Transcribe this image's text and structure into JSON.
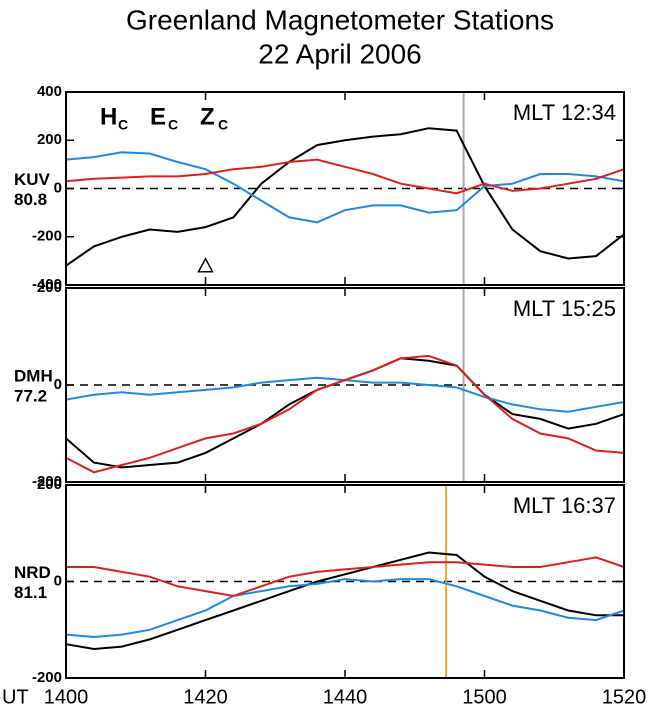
{
  "title": "Greenland Magnetometer Stations",
  "subtitle": "22 April 2006",
  "legend_subscript": "C",
  "chart_data": [
    {
      "type": "line",
      "station": "KUV",
      "latitude": "80.8",
      "annotation": "MLT 12:34",
      "legend": true,
      "x": [
        840,
        844,
        848,
        852,
        856,
        860,
        864,
        868,
        872,
        876,
        880,
        884,
        888,
        892,
        896,
        900,
        904,
        908,
        912,
        916,
        920
      ],
      "xlim": [
        840,
        920
      ],
      "ylim": [
        -400,
        400
      ],
      "yticks": [
        -400,
        -200,
        0,
        200,
        400
      ],
      "vline": {
        "x": 897,
        "color": "#aaaaaa"
      },
      "marker": {
        "x": 860,
        "y": -320,
        "symbol": "triangle"
      },
      "series": [
        {
          "name": "H",
          "color": "#000000",
          "values": [
            -320,
            -240,
            -200,
            -170,
            -180,
            -160,
            -120,
            20,
            110,
            180,
            200,
            215,
            225,
            250,
            240,
            10,
            -170,
            -260,
            -290,
            -280,
            -190
          ]
        },
        {
          "name": "E",
          "color": "#1e88e5",
          "values": [
            120,
            130,
            150,
            145,
            110,
            80,
            20,
            -50,
            -120,
            -140,
            -90,
            -70,
            -70,
            -100,
            -90,
            10,
            20,
            60,
            60,
            50,
            30
          ]
        },
        {
          "name": "Z",
          "color": "#e01e1e",
          "values": [
            30,
            40,
            45,
            50,
            50,
            60,
            80,
            90,
            110,
            120,
            90,
            60,
            20,
            0,
            -20,
            20,
            -10,
            0,
            20,
            40,
            80
          ]
        }
      ]
    },
    {
      "type": "line",
      "station": "DMH",
      "latitude": "77.2",
      "annotation": "MLT 15:25",
      "x": [
        840,
        844,
        848,
        852,
        856,
        860,
        864,
        868,
        872,
        876,
        880,
        884,
        888,
        892,
        896,
        900,
        904,
        908,
        912,
        916,
        920
      ],
      "xlim": [
        840,
        920
      ],
      "ylim": [
        -200,
        200
      ],
      "yticks": [
        -200,
        0,
        200
      ],
      "vline": {
        "x": 897,
        "color": "#aaaaaa"
      },
      "series": [
        {
          "color": "#000000",
          "values": [
            -110,
            -160,
            -170,
            -165,
            -160,
            -140,
            -110,
            -80,
            -40,
            -10,
            10,
            30,
            55,
            50,
            40,
            -20,
            -60,
            -70,
            -90,
            -80,
            -60
          ]
        },
        {
          "color": "#1e88e5",
          "values": [
            -30,
            -20,
            -15,
            -20,
            -15,
            -10,
            -5,
            5,
            10,
            15,
            10,
            5,
            5,
            0,
            -5,
            -25,
            -40,
            -50,
            -55,
            -45,
            -35
          ]
        },
        {
          "color": "#e01e1e",
          "values": [
            -150,
            -180,
            -165,
            -150,
            -130,
            -110,
            -100,
            -80,
            -50,
            -10,
            10,
            30,
            55,
            60,
            40,
            -20,
            -70,
            -100,
            -110,
            -135,
            -140
          ]
        }
      ]
    },
    {
      "type": "line",
      "station": "NRD",
      "latitude": "81.1",
      "annotation": "MLT 16:37",
      "xlabel": "UT",
      "x": [
        840,
        844,
        848,
        852,
        856,
        860,
        864,
        868,
        872,
        876,
        880,
        884,
        888,
        892,
        896,
        900,
        904,
        908,
        912,
        916,
        920
      ],
      "xlim": [
        840,
        920
      ],
      "ylim": [
        -200,
        200
      ],
      "yticks": [
        -200,
        0,
        200
      ],
      "xticks": [
        {
          "value": 840,
          "label": "1400"
        },
        {
          "value": 860,
          "label": "1420"
        },
        {
          "value": 880,
          "label": "1440"
        },
        {
          "value": 900,
          "label": "1500"
        },
        {
          "value": 920,
          "label": "1520"
        }
      ],
      "vline": {
        "x": 894.5,
        "color": "#f5a623"
      },
      "series": [
        {
          "color": "#000000",
          "values": [
            -130,
            -140,
            -135,
            -120,
            -100,
            -80,
            -60,
            -40,
            -20,
            0,
            15,
            30,
            45,
            60,
            55,
            10,
            -20,
            -40,
            -60,
            -70,
            -70
          ]
        },
        {
          "color": "#1e88e5",
          "values": [
            -110,
            -115,
            -110,
            -100,
            -80,
            -60,
            -30,
            -20,
            -10,
            -5,
            5,
            0,
            5,
            5,
            -10,
            -30,
            -50,
            -60,
            -75,
            -80,
            -60
          ]
        },
        {
          "color": "#e01e1e",
          "values": [
            30,
            30,
            20,
            10,
            -10,
            -20,
            -30,
            -10,
            10,
            20,
            25,
            30,
            35,
            40,
            40,
            35,
            30,
            30,
            40,
            50,
            30
          ]
        }
      ]
    }
  ]
}
